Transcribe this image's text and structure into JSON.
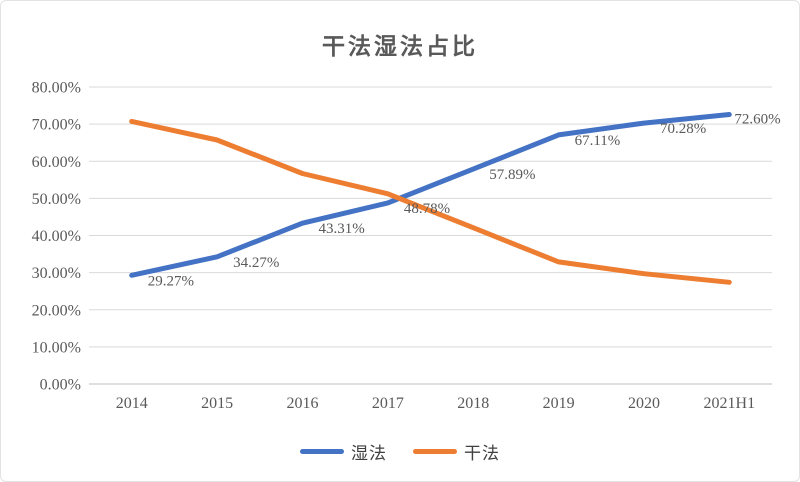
{
  "chart_data": {
    "type": "line",
    "title": "干法湿法占比",
    "categories": [
      "2014",
      "2015",
      "2016",
      "2017",
      "2018",
      "2019",
      "2020",
      "2021H1"
    ],
    "series": [
      {
        "name": "湿法",
        "color": "#4472C4",
        "values": [
          29.27,
          34.27,
          43.31,
          48.78,
          57.89,
          67.11,
          70.28,
          72.6
        ],
        "point_labels": [
          "29.27%",
          "34.27%",
          "43.31%",
          "48.78%",
          "57.89%",
          "67.11%",
          "70.28%",
          "72.60%"
        ]
      },
      {
        "name": "干法",
        "color": "#ED7D31",
        "values": [
          70.73,
          65.73,
          56.69,
          51.22,
          42.11,
          32.89,
          29.72,
          27.4
        ],
        "point_labels": []
      }
    ],
    "y_tick_labels": [
      "80.00%",
      "70.00%",
      "60.00%",
      "50.00%",
      "40.00%",
      "30.00%",
      "20.00%",
      "10.00%",
      "0.00%"
    ],
    "ylim": [
      0,
      80
    ],
    "y_tick_step": 10,
    "grid": true,
    "legend_position": "bottom",
    "colors": {
      "grid": "#D9D9D9",
      "axis_line": "#BFBFBF",
      "tick_text": "#595959",
      "data_label_text": "#595959",
      "title_text": "#595959",
      "legend_text": "#404040",
      "background": "#FFFFFF",
      "border": "#E3E3E3"
    }
  }
}
